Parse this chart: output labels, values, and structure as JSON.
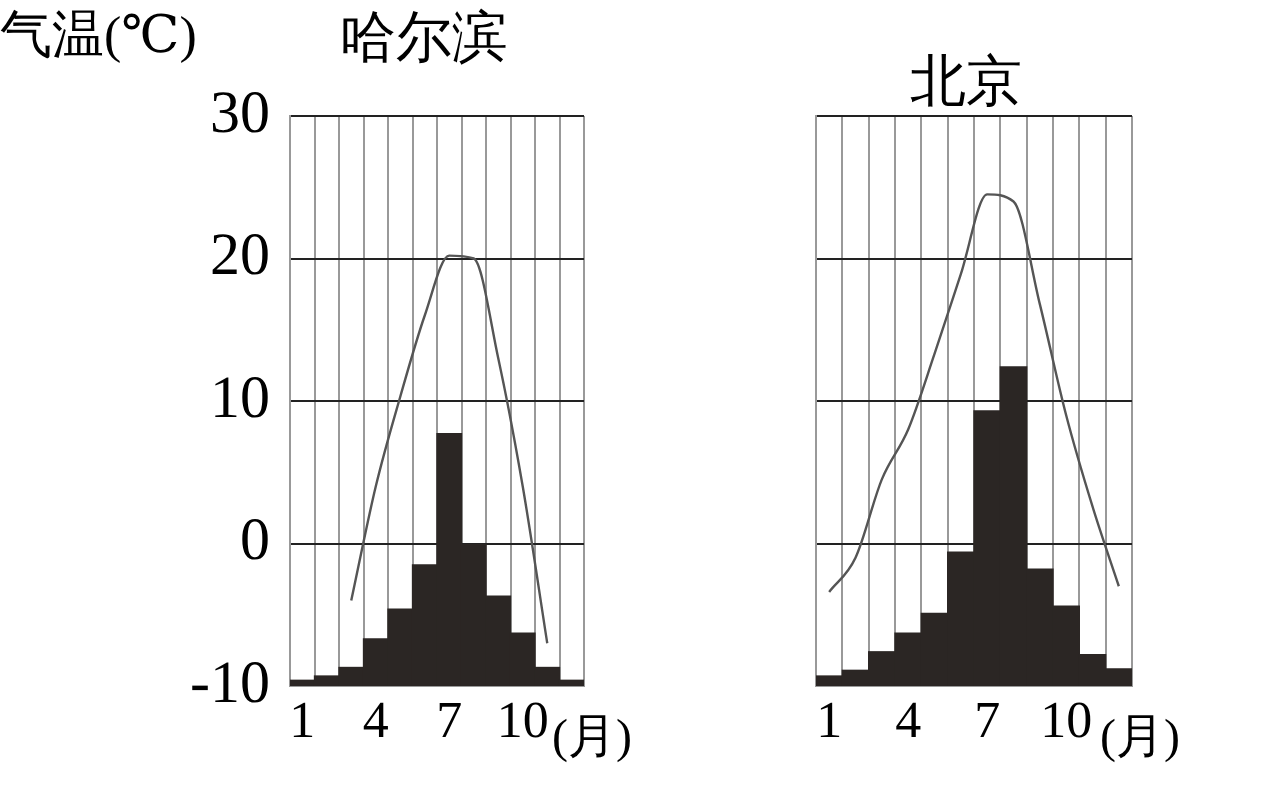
{
  "chart_data": [
    {
      "type": "bar",
      "title": "哈尔滨",
      "ylabel": "气温(℃)",
      "xlabel": "(月)",
      "categories": [
        "1",
        null,
        null,
        "4",
        null,
        null,
        "7",
        null,
        null,
        "10",
        null,
        null
      ],
      "series": [
        {
          "color": "#2b2624",
          "base": [
            -10,
            -10,
            -10,
            -10,
            -10,
            -10,
            -10,
            -10,
            -10,
            -10,
            -10,
            -10
          ],
          "values": [
            0.4,
            0.7,
            1.3,
            3.3,
            5.4,
            8.5,
            17.7,
            10,
            6.3,
            3.7,
            1.3,
            0.4
          ]
        },
        {
          "type": "line",
          "color": "#555555",
          "values": [
            null,
            null,
            -4,
            4,
            10.3,
            16,
            20.2,
            20,
            13,
            4,
            -7,
            null
          ]
        }
      ],
      "ylim": [
        -10,
        30
      ],
      "yticks": [
        -10,
        0,
        10,
        20,
        30
      ],
      "grid": true,
      "marker": "none"
    },
    {
      "type": "bar",
      "title": "北京",
      "xlabel": "(月)",
      "categories": [
        "1",
        null,
        null,
        "4",
        null,
        null,
        "7",
        null,
        null,
        "10",
        null,
        null
      ],
      "series": [
        {
          "color": "#2b2624",
          "base": [
            -10,
            -10,
            -10,
            -10,
            -10,
            -10,
            -10,
            -10,
            -10,
            -10,
            -10,
            -10
          ],
          "values": [
            0.7,
            1.1,
            2.4,
            3.7,
            5.1,
            9.4,
            19.3,
            22.4,
            8.2,
            5.6,
            2.2,
            1.2
          ]
        },
        {
          "type": "line",
          "color": "#555555",
          "values": [
            -3.4,
            -1,
            4.5,
            8,
            13.3,
            18.9,
            24.5,
            24,
            16.8,
            9,
            2.6,
            -3
          ]
        }
      ],
      "ylim": [
        -10,
        30
      ],
      "yticks": [
        -10,
        0,
        10,
        20,
        30
      ],
      "grid": true,
      "tick_labels": "x",
      "marker": "none"
    }
  ]
}
